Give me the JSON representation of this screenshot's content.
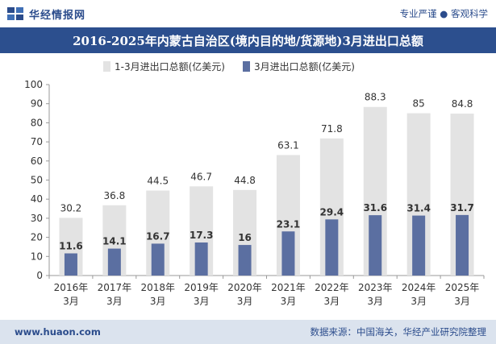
{
  "header": {
    "brand_name": "华经情报网",
    "tagline": "专业严谨 ● 客观科学"
  },
  "title": "2016-2025年内蒙古自治区(境内目的地/货源地)3月进出口总额",
  "footer": {
    "url": "www.huaon.com",
    "source": "数据来源：中国海关，华经产业研究院整理"
  },
  "colors": {
    "series_total": "#e3e3e3",
    "series_march": "#5b6fa1",
    "title_bg": "#2c4f8e",
    "brand": "#2b4c8c"
  },
  "chart_data": {
    "type": "bar",
    "categories": [
      "2016年\n3月",
      "2017年\n3月",
      "2018年\n3月",
      "2019年\n3月",
      "2020年\n3月",
      "2021年\n3月",
      "2022年\n3月",
      "2023年\n3月",
      "2024年\n3月",
      "2025年\n3月"
    ],
    "series": [
      {
        "name": "1-3月进出口总额(亿美元)",
        "values": [
          30.2,
          36.8,
          44.5,
          46.7,
          44.8,
          63.1,
          71.8,
          88.3,
          85,
          84.8
        ]
      },
      {
        "name": "3月进出口总额(亿美元)",
        "values": [
          11.6,
          14.1,
          16.7,
          17.3,
          16,
          23.1,
          29.4,
          31.6,
          31.4,
          31.7
        ]
      }
    ],
    "ylim": [
      0,
      100
    ],
    "yticks": [
      0,
      10,
      20,
      30,
      40,
      50,
      60,
      70,
      80,
      90,
      100
    ],
    "grid": false,
    "legend": "top-left"
  }
}
